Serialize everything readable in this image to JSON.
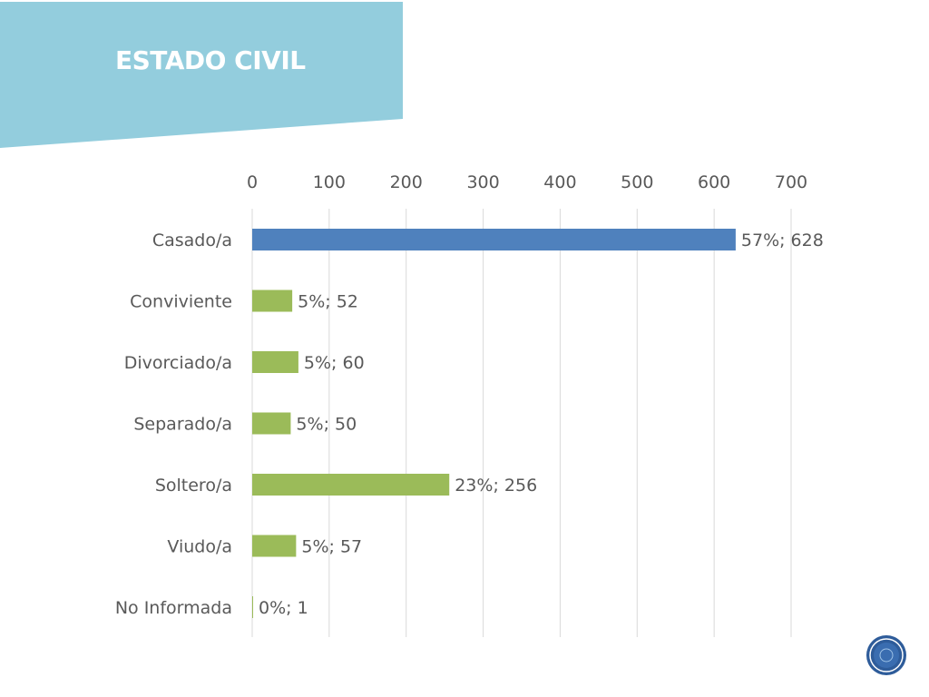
{
  "slide": {
    "title": "ESTADO CIVIL",
    "banner_color": "#93CDDD"
  },
  "chart_data": {
    "type": "bar",
    "orientation": "horizontal",
    "title": "",
    "xlabel": "",
    "ylabel": "",
    "categories": [
      "Casado/a",
      "Conviviente",
      "Divorciado/a",
      "Separado/a",
      "Soltero/a",
      "Viudo/a",
      "No Informada"
    ],
    "values": [
      628,
      52,
      60,
      50,
      256,
      57,
      1
    ],
    "data_labels": [
      "57%; 628",
      "5%; 52",
      "5%; 60",
      "5%; 50",
      "23%; 256",
      "5%; 57",
      "0%; 1"
    ],
    "bar_colors": [
      "#4F81BD",
      "#9BBB59",
      "#9BBB59",
      "#9BBB59",
      "#9BBB59",
      "#9BBB59",
      "#9BBB59"
    ],
    "xlim": [
      0,
      700
    ],
    "xticks": [
      "0",
      "100",
      "200",
      "300",
      "400",
      "500",
      "600",
      "700"
    ],
    "x_axis_position": "top",
    "grid": true,
    "legend": "none"
  },
  "logo": {
    "icon": "circular-seal-icon",
    "color": "#2E5C9A"
  }
}
